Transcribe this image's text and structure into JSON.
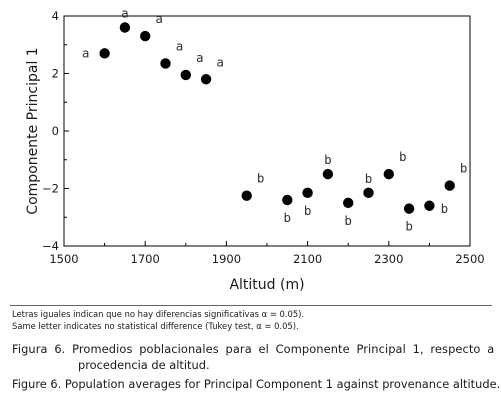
{
  "chart_data": {
    "type": "scatter",
    "xlabel": "Altitud (m)",
    "ylabel": "Componente Principal 1",
    "xlim": [
      1500,
      2500
    ],
    "ylim": [
      -4,
      4
    ],
    "xticks": [
      1500,
      1700,
      1900,
      2100,
      2300,
      2500
    ],
    "yticks": [
      -4,
      -2,
      0,
      2,
      4
    ],
    "grid": false,
    "marker_color": "#000000",
    "points": [
      {
        "x": 1600,
        "y": 2.7,
        "label": "a",
        "label_pos": "left"
      },
      {
        "x": 1650,
        "y": 3.6,
        "label": "a",
        "label_pos": "above"
      },
      {
        "x": 1700,
        "y": 3.3,
        "label": "a",
        "label_pos": "above-right"
      },
      {
        "x": 1750,
        "y": 2.35,
        "label": "a",
        "label_pos": "above-right"
      },
      {
        "x": 1800,
        "y": 1.95,
        "label": "a",
        "label_pos": "above-right"
      },
      {
        "x": 1850,
        "y": 1.8,
        "label": "a",
        "label_pos": "above-right"
      },
      {
        "x": 1950,
        "y": -2.25,
        "label": "b",
        "label_pos": "above-right"
      },
      {
        "x": 2050,
        "y": -2.4,
        "label": "b",
        "label_pos": "below"
      },
      {
        "x": 2100,
        "y": -2.15,
        "label": "b",
        "label_pos": "below"
      },
      {
        "x": 2150,
        "y": -1.5,
        "label": "b",
        "label_pos": "above"
      },
      {
        "x": 2200,
        "y": -2.5,
        "label": "b",
        "label_pos": "below"
      },
      {
        "x": 2250,
        "y": -2.15,
        "label": "b",
        "label_pos": "above"
      },
      {
        "x": 2300,
        "y": -1.5,
        "label": "b",
        "label_pos": "above-right"
      },
      {
        "x": 2350,
        "y": -2.7,
        "label": "b",
        "label_pos": "below"
      },
      {
        "x": 2400,
        "y": -2.6,
        "label": "b",
        "label_pos": "right"
      },
      {
        "x": 2450,
        "y": -1.9,
        "label": "b",
        "label_pos": "above-right"
      }
    ]
  },
  "notes": {
    "line1": "Letras iguales indican que no hay diferencias significativas α = 0.05).",
    "line2": "Same letter indicates no statistical difference (Tukey test, α = 0.05)."
  },
  "caption": {
    "spanish_line1": "Figura 6. Promedios poblacionales para el Componente Principal 1, respecto a la",
    "spanish_line2": "procedencia de altitud.",
    "english": "Figure 6. Population averages for Principal Component 1 against provenance altitude."
  }
}
